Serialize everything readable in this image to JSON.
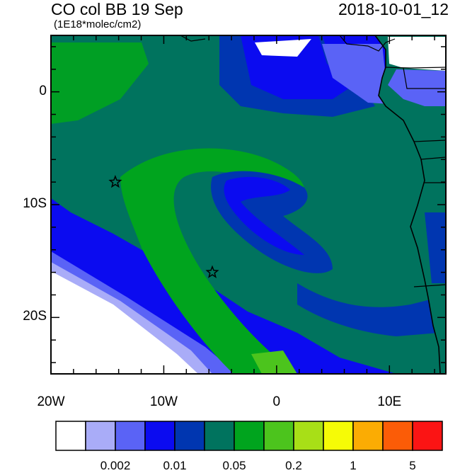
{
  "header": {
    "title": "CO col BB 19 Sep",
    "date": "2018-10-01_12",
    "units": "(1E18*molec/cm2)"
  },
  "map": {
    "lon_range": [
      -20,
      15
    ],
    "lat_range": [
      -25,
      5
    ],
    "x_ticks": [
      {
        "value": -20,
        "label": "20W"
      },
      {
        "value": -10,
        "label": "10W"
      },
      {
        "value": 0,
        "label": "0"
      },
      {
        "value": 10,
        "label": "10E"
      }
    ],
    "y_ticks": [
      {
        "value": 0,
        "label": "0"
      },
      {
        "value": -10,
        "label": "10S"
      },
      {
        "value": -20,
        "label": "20S"
      }
    ],
    "markers": [
      {
        "name": "star-marker-1",
        "lon": -14.3,
        "lat": -8.0
      },
      {
        "name": "star-marker-2",
        "lon": -5.7,
        "lat": -16.0
      }
    ]
  },
  "colorbar": {
    "colors": [
      "#ffffff",
      "#a9acf8",
      "#5a63f6",
      "#0b0bf0",
      "#0036b0",
      "#00735e",
      "#00a41e",
      "#4cc41d",
      "#a8df17",
      "#f6fb06",
      "#fbac03",
      "#fb5c07",
      "#fb1414"
    ],
    "labels": [
      {
        "text": "0.002",
        "boundary": 2
      },
      {
        "text": "0.01",
        "boundary": 4
      },
      {
        "text": "0.05",
        "boundary": 6
      },
      {
        "text": "0.2",
        "boundary": 8
      },
      {
        "text": "1",
        "boundary": 10
      },
      {
        "text": "5",
        "boundary": 12
      }
    ]
  }
}
